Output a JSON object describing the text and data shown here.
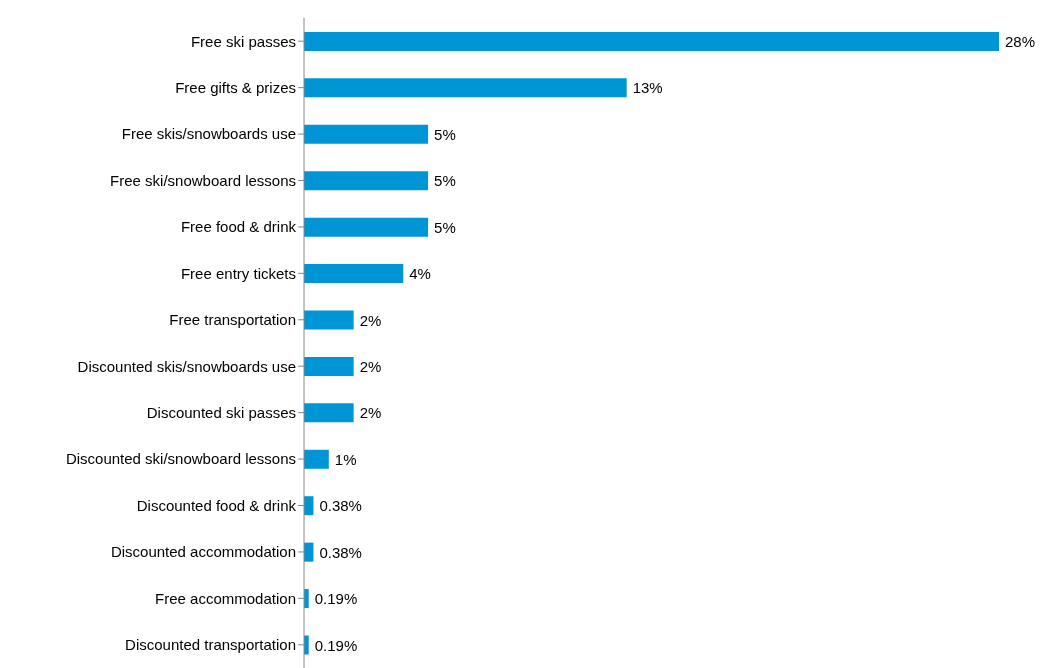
{
  "chart_data": {
    "type": "bar",
    "orientation": "horizontal",
    "categories": [
      "Free ski passes",
      "Free gifts & prizes",
      "Free skis/snowboards use",
      "Free ski/snowboard lessons",
      "Free food & drink",
      "Free entry tickets",
      "Free transportation",
      "Discounted skis/snowboards use",
      "Discounted ski passes",
      "Discounted ski/snowboard lessons",
      "Discounted food & drink",
      "Discounted accommodation",
      "Free accommodation",
      "Discounted transportation"
    ],
    "values": [
      28,
      13,
      5,
      5,
      5,
      4,
      2,
      2,
      2,
      1,
      0.38,
      0.38,
      0.19,
      0.19
    ],
    "value_labels": [
      "28%",
      "13%",
      "5%",
      "5%",
      "5%",
      "4%",
      "2%",
      "2%",
      "2%",
      "1%",
      "0.38%",
      "0.38%",
      "0.19%",
      "0.19%"
    ],
    "color": "#0096d6",
    "grid": false,
    "legend": false
  }
}
